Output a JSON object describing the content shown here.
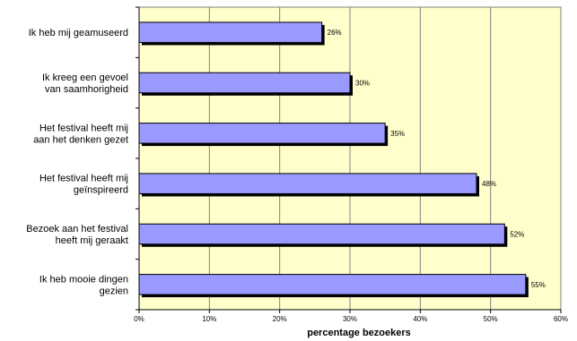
{
  "chart_data": {
    "type": "bar",
    "orientation": "horizontal",
    "categories": [
      [
        "Ik heb mij geamuseerd"
      ],
      [
        "Ik kreeg een gevoel",
        "van saamhorigheid"
      ],
      [
        "Het festival heeft mij",
        "aan het denken gezet"
      ],
      [
        "Het festival heeft mij",
        "geïnspireerd"
      ],
      [
        "Bezoek aan het festival",
        "heeft mij geraakt"
      ],
      [
        "Ik heb mooie dingen",
        "gezien"
      ]
    ],
    "values": [
      26,
      30,
      35,
      48,
      52,
      55
    ],
    "value_labels": [
      "26%",
      "30%",
      "35%",
      "48%",
      "52%",
      "55%"
    ],
    "xlabel": "percentage bezoekers",
    "ylabel": "",
    "title": "",
    "xlim": [
      0,
      60
    ],
    "xticks": [
      0,
      10,
      20,
      30,
      40,
      50,
      60
    ],
    "xtick_labels": [
      "0%",
      "10%",
      "20%",
      "30%",
      "40%",
      "50%",
      "60%"
    ],
    "grid": "vertical",
    "legend": "none",
    "colors": {
      "plot_background": "#ffffcc",
      "bar_fill": "#9999ff",
      "bar_border": "#000000",
      "bar_shadow": "#000000",
      "gridline": "#808080",
      "axis": "#000000"
    }
  }
}
